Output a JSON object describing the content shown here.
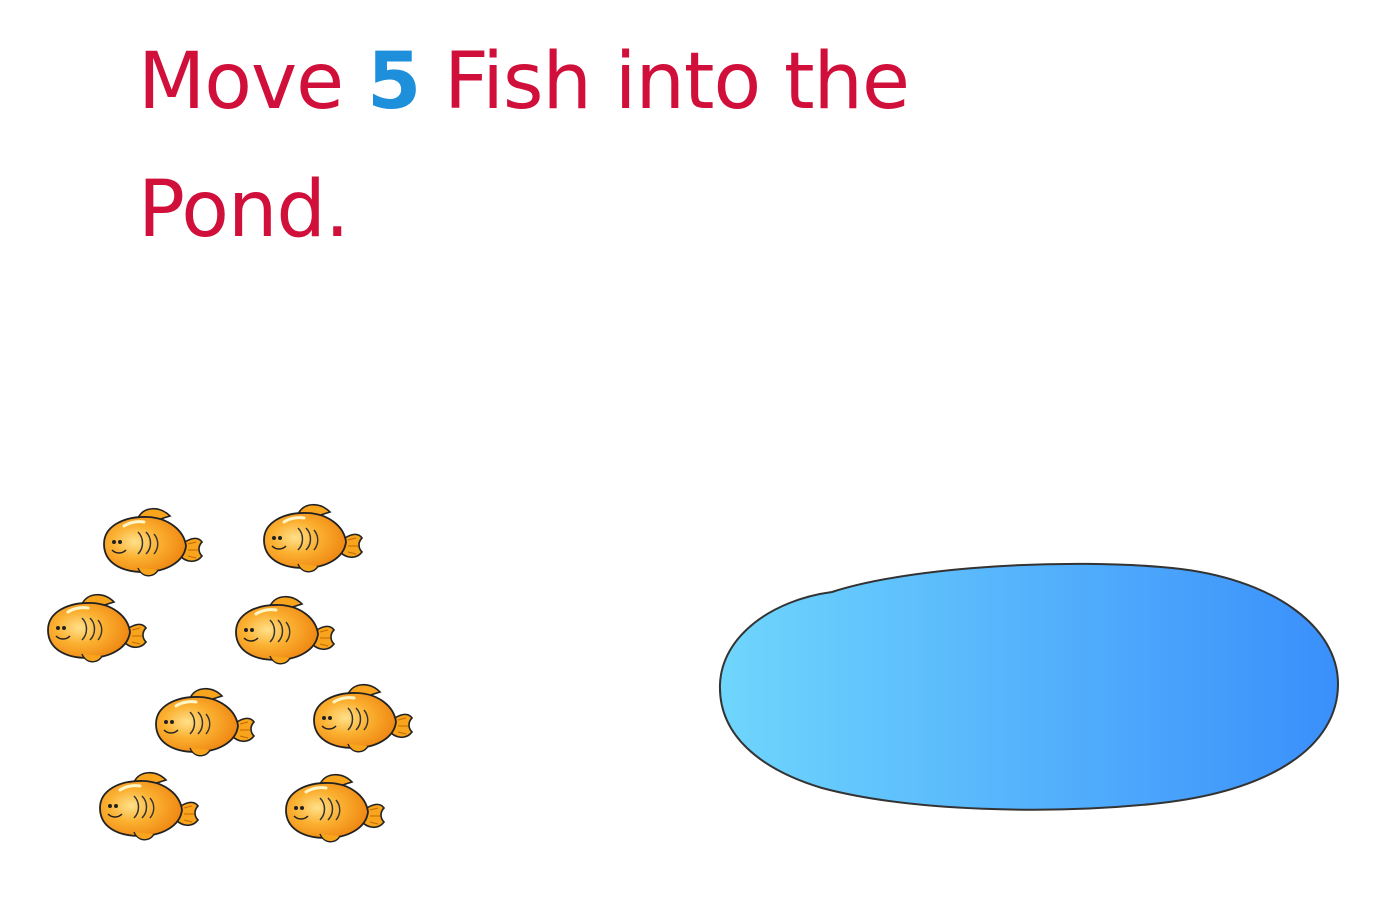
{
  "instruction": {
    "prefix": "Move ",
    "count": "5",
    "suffix": " Fish into the Pond."
  },
  "colors": {
    "instruction_text": "#d0103a",
    "count_text": "#1d8fdb",
    "fish_body": "#f59a14",
    "pond_left": "#6fd6fc",
    "pond_right": "#3a8ffb"
  },
  "fish": [
    {
      "id": "fish-1"
    },
    {
      "id": "fish-2"
    },
    {
      "id": "fish-3"
    },
    {
      "id": "fish-4"
    },
    {
      "id": "fish-5"
    },
    {
      "id": "fish-6"
    },
    {
      "id": "fish-7"
    },
    {
      "id": "fish-8"
    }
  ]
}
